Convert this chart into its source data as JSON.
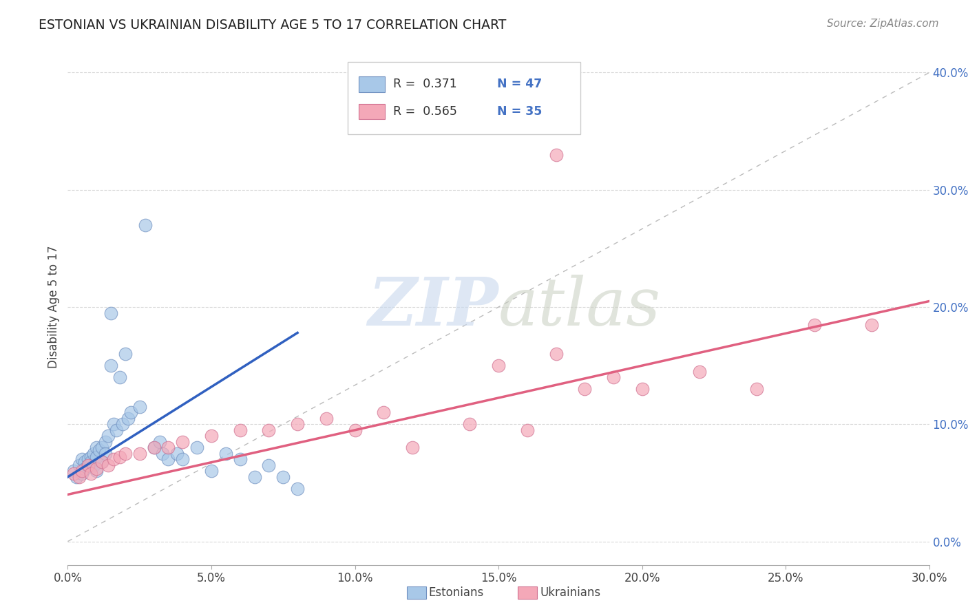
{
  "title": "ESTONIAN VS UKRAINIAN DISABILITY AGE 5 TO 17 CORRELATION CHART",
  "source": "Source: ZipAtlas.com",
  "ylabel_label": "Disability Age 5 to 17",
  "xlim": [
    0.0,
    0.3
  ],
  "ylim": [
    -0.02,
    0.42
  ],
  "legend_R_blue": "R =  0.371",
  "legend_N_blue": "N = 47",
  "legend_R_pink": "R =  0.565",
  "legend_N_pink": "N = 35",
  "blue_color": "#a8c8e8",
  "pink_color": "#f4a8b8",
  "blue_line_color": "#3060c0",
  "pink_line_color": "#e06080",
  "blue_dot_edge": "#7090c0",
  "pink_dot_edge": "#d07090",
  "background_color": "#ffffff",
  "grid_color": "#d8d8d8",
  "blue_scatter_x": [
    0.002,
    0.003,
    0.004,
    0.005,
    0.005,
    0.006,
    0.006,
    0.007,
    0.007,
    0.008,
    0.008,
    0.009,
    0.009,
    0.01,
    0.01,
    0.01,
    0.011,
    0.012,
    0.012,
    0.013,
    0.013,
    0.014,
    0.015,
    0.015,
    0.016,
    0.017,
    0.018,
    0.019,
    0.02,
    0.021,
    0.022,
    0.025,
    0.027,
    0.03,
    0.032,
    0.033,
    0.035,
    0.038,
    0.04,
    0.045,
    0.05,
    0.055,
    0.06,
    0.065,
    0.07,
    0.075,
    0.08
  ],
  "blue_scatter_y": [
    0.06,
    0.055,
    0.065,
    0.07,
    0.058,
    0.068,
    0.062,
    0.07,
    0.065,
    0.072,
    0.068,
    0.075,
    0.065,
    0.08,
    0.072,
    0.06,
    0.078,
    0.08,
    0.068,
    0.085,
    0.075,
    0.09,
    0.15,
    0.195,
    0.1,
    0.095,
    0.14,
    0.1,
    0.16,
    0.105,
    0.11,
    0.115,
    0.27,
    0.08,
    0.085,
    0.075,
    0.07,
    0.075,
    0.07,
    0.08,
    0.06,
    0.075,
    0.07,
    0.055,
    0.065,
    0.055,
    0.045
  ],
  "pink_scatter_x": [
    0.002,
    0.004,
    0.005,
    0.007,
    0.008,
    0.01,
    0.012,
    0.014,
    0.016,
    0.018,
    0.02,
    0.025,
    0.03,
    0.035,
    0.04,
    0.05,
    0.06,
    0.07,
    0.08,
    0.09,
    0.1,
    0.11,
    0.12,
    0.14,
    0.15,
    0.16,
    0.17,
    0.18,
    0.19,
    0.2,
    0.22,
    0.24,
    0.26,
    0.28,
    0.17
  ],
  "pink_scatter_y": [
    0.058,
    0.055,
    0.06,
    0.065,
    0.058,
    0.062,
    0.068,
    0.065,
    0.07,
    0.072,
    0.075,
    0.075,
    0.08,
    0.08,
    0.085,
    0.09,
    0.095,
    0.095,
    0.1,
    0.105,
    0.095,
    0.11,
    0.08,
    0.1,
    0.15,
    0.095,
    0.16,
    0.13,
    0.14,
    0.13,
    0.145,
    0.13,
    0.185,
    0.185,
    0.33
  ],
  "blue_line_x": [
    0.0,
    0.08
  ],
  "blue_line_y": [
    0.055,
    0.178
  ],
  "pink_line_x": [
    0.0,
    0.3
  ],
  "pink_line_y": [
    0.04,
    0.205
  ]
}
